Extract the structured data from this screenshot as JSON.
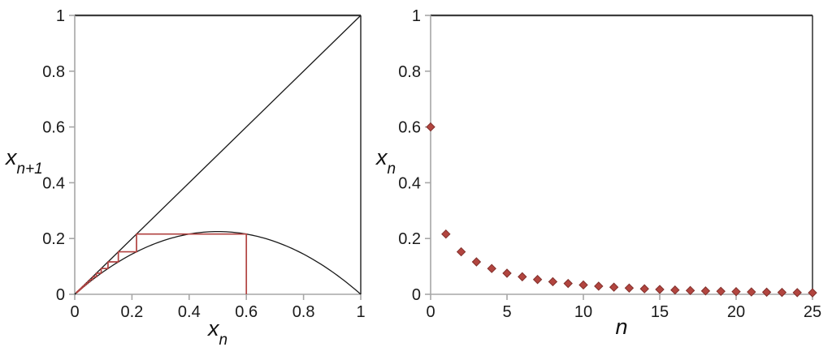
{
  "figure": {
    "background": "#ffffff",
    "colors": {
      "axis": "#a7a7a7",
      "border_top": "#3d3d3d",
      "border_right": "#1f1f1f",
      "curve": "#1a1a1a",
      "cobweb": "#b14240",
      "marker_fill": "#b2453f",
      "marker_stroke": "#81302c",
      "text": "#1a1a1a"
    }
  },
  "chart_data": [
    {
      "type": "line",
      "xlabel": "x_n",
      "ylabel": "x_{n+1}",
      "xlim": [
        0,
        1
      ],
      "ylim": [
        0,
        1
      ],
      "x_tick_values": [
        0,
        0.2,
        0.4,
        0.6,
        0.8,
        1
      ],
      "x_tick_labels": [
        "0",
        "0.2",
        "0.4",
        "0.6",
        "0.8",
        "1"
      ],
      "y_tick_values": [
        0,
        0.2,
        0.4,
        0.6,
        0.8,
        1
      ],
      "y_tick_labels": [
        "0",
        "0.2",
        "0.4",
        "0.6",
        "0.8",
        "1"
      ],
      "grid": false,
      "legend": false,
      "r_estimate": 0.9,
      "x0": 0.6,
      "series": [
        {
          "name": "identity-line",
          "kind": "diagonal",
          "equation": "y = x"
        },
        {
          "name": "logistic-curve",
          "kind": "parabola",
          "equation": "y = 0.9 x (1 - x)"
        },
        {
          "name": "cobweb-trajectory",
          "kind": "cobweb",
          "iterates": [
            0.6,
            0.216,
            0.15241,
            0.11626,
            0.09247,
            0.07553,
            0.06284,
            0.053,
            0.04518,
            0.03882,
            0.03358,
            0.02921,
            0.02552,
            0.02238,
            0.01969,
            0.01737,
            0.01537,
            0.01362,
            0.01209,
            0.01075,
            0.00957,
            0.00853,
            0.00761,
            0.0068,
            0.00608,
            0.00544
          ]
        }
      ],
      "labels": {
        "x_base": "x",
        "x_sub": "n",
        "y_base": "x",
        "y_sub": "n+1"
      }
    },
    {
      "type": "scatter",
      "xlabel": "n",
      "ylabel": "x_n",
      "xlim": [
        0,
        25
      ],
      "ylim": [
        0,
        1
      ],
      "x_tick_values": [
        0,
        5,
        10,
        15,
        20,
        25
      ],
      "x_tick_labels": [
        "0",
        "5",
        "10",
        "15",
        "20",
        "25"
      ],
      "y_tick_values": [
        0,
        0.2,
        0.4,
        0.6,
        0.8,
        1
      ],
      "y_tick_labels": [
        "0",
        "0.2",
        "0.4",
        "0.6",
        "0.8",
        "1"
      ],
      "grid": false,
      "legend": false,
      "marker": "diamond",
      "x": [
        0,
        1,
        2,
        3,
        4,
        5,
        6,
        7,
        8,
        9,
        10,
        11,
        12,
        13,
        14,
        15,
        16,
        17,
        18,
        19,
        20,
        21,
        22,
        23,
        24,
        25
      ],
      "y": [
        0.6,
        0.216,
        0.15241,
        0.11626,
        0.09247,
        0.07553,
        0.06284,
        0.053,
        0.04518,
        0.03882,
        0.03358,
        0.02921,
        0.02552,
        0.02238,
        0.01969,
        0.01737,
        0.01537,
        0.01362,
        0.01209,
        0.01075,
        0.00957,
        0.00853,
        0.00761,
        0.0068,
        0.00608,
        0.00544
      ],
      "labels": {
        "x_base": "n",
        "x_sub": "",
        "y_base": "x",
        "y_sub": "n"
      }
    }
  ]
}
